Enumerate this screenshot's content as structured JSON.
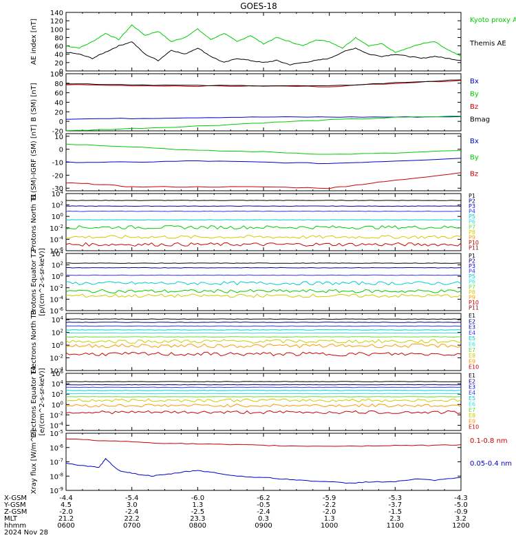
{
  "title": "GOES-18",
  "x_ticks": [
    "0600",
    "0700",
    "0800",
    "0900",
    "1000",
    "1100",
    "1200"
  ],
  "footer": {
    "row_labels": [
      "X-GSM",
      "Y-GSM",
      "Z-GSM",
      "MLT",
      "hhmm",
      "2024 Nov 28"
    ],
    "xgsm": [
      "-4.4",
      "-5.4",
      "-6.0",
      "-6.2",
      "-5.9",
      "-5.3",
      "-4.3"
    ],
    "ygsm": [
      "4.5",
      "3.0",
      "1.3",
      "-0.5",
      "-2.2",
      "-3.7",
      "-5.0"
    ],
    "zgsm": [
      "-2.0",
      "-2.4",
      "-2.5",
      "-2.4",
      "-2.0",
      "-1.5",
      "-0.9"
    ],
    "mlt": [
      "21.2",
      "22.2",
      "23.3",
      "0.3",
      "1.3",
      "2.3",
      "3.2"
    ],
    "hhmm": [
      "0600",
      "0700",
      "0800",
      "0900",
      "1000",
      "1100",
      "1200"
    ]
  },
  "colors": {
    "black": "#000000",
    "blue": "#0000cc",
    "green": "#00cc00",
    "red": "#cc0000",
    "navy": "#000080",
    "royal": "#3333ff",
    "cyan": "#00cccc",
    "aqua": "#33dddd",
    "lime": "#66dd33",
    "yellow": "#cccc00",
    "orange": "#ff9900",
    "darkred": "#990000"
  },
  "chart_data": [
    {
      "type": "line",
      "panel": "ae",
      "ylabel": "AE index [nT]",
      "yticks": [
        "0",
        "20",
        "40",
        "60",
        "80",
        "100",
        "120",
        "140"
      ],
      "ylim": [
        0,
        140
      ],
      "series": [
        {
          "name": "Kyoto proxy AE",
          "color": "#00cc00",
          "x": [
            6.0,
            6.2,
            6.4,
            6.6,
            6.8,
            7.0,
            7.2,
            7.4,
            7.6,
            7.8,
            8.0,
            8.2,
            8.4,
            8.6,
            8.8,
            9.0,
            9.2,
            9.4,
            9.6,
            9.8,
            10.0,
            10.2,
            10.4,
            10.6,
            10.8,
            11.0,
            11.2,
            11.4,
            11.6,
            11.8,
            12.0
          ],
          "y": [
            60,
            55,
            70,
            90,
            75,
            110,
            85,
            95,
            70,
            80,
            100,
            75,
            90,
            70,
            85,
            65,
            80,
            70,
            60,
            75,
            70,
            55,
            80,
            60,
            65,
            45,
            55,
            65,
            70,
            50,
            35
          ]
        },
        {
          "name": "Themis AE",
          "color": "#000000",
          "x": [
            6.0,
            6.2,
            6.4,
            6.6,
            6.8,
            7.0,
            7.2,
            7.4,
            7.6,
            7.8,
            8.0,
            8.2,
            8.4,
            8.6,
            8.8,
            9.0,
            9.2,
            9.4,
            9.6,
            9.8,
            10.0,
            10.2,
            10.4,
            10.6,
            10.8,
            11.0,
            11.2,
            11.4,
            11.6,
            11.8,
            12.0
          ],
          "y": [
            45,
            40,
            30,
            45,
            60,
            70,
            40,
            25,
            50,
            40,
            55,
            35,
            20,
            30,
            25,
            20,
            25,
            15,
            20,
            25,
            30,
            45,
            55,
            40,
            35,
            40,
            35,
            30,
            35,
            30,
            25
          ]
        }
      ]
    },
    {
      "type": "line",
      "panel": "bsm",
      "ylabel": "B (SM) [nT]",
      "yticks": [
        "-20",
        "0",
        "20",
        "40",
        "60",
        "80",
        "100"
      ],
      "ylim": [
        -20,
        100
      ],
      "series": [
        {
          "name": "Bx",
          "color": "#0000cc",
          "x": [
            6,
            7,
            8,
            9,
            10,
            11,
            12
          ],
          "y": [
            5,
            6,
            8,
            9,
            9,
            9,
            10
          ]
        },
        {
          "name": "By",
          "color": "#00cc00",
          "x": [
            6,
            7,
            8,
            9,
            10,
            11,
            12
          ],
          "y": [
            -20,
            -15,
            -10,
            -3,
            3,
            8,
            11
          ]
        },
        {
          "name": "Bz",
          "color": "#cc0000",
          "x": [
            6,
            7,
            8,
            9,
            10,
            11,
            12
          ],
          "y": [
            77,
            75,
            74,
            74,
            73,
            80,
            86
          ]
        },
        {
          "name": "Bmag",
          "color": "#000000",
          "x": [
            6,
            7,
            8,
            9,
            10,
            11,
            12
          ],
          "y": [
            79,
            77,
            75,
            75,
            74,
            81,
            87
          ]
        }
      ]
    },
    {
      "type": "line",
      "panel": "bigrf",
      "ylabel": "B (SM)-IGRF (SM) [nT]",
      "yticks": [
        "-30",
        "-20",
        "-10",
        "0",
        "10"
      ],
      "ylim": [
        -32,
        12
      ],
      "series": [
        {
          "name": "Bx",
          "color": "#0000cc",
          "x": [
            6,
            7,
            8,
            9,
            10,
            11,
            12
          ],
          "y": [
            -10,
            -10,
            -9,
            -10,
            -11,
            -9,
            -7
          ]
        },
        {
          "name": "By",
          "color": "#00cc00",
          "x": [
            6,
            7,
            8,
            9,
            10,
            11,
            12
          ],
          "y": [
            4,
            2,
            -1,
            -2,
            -4,
            -3,
            -1
          ]
        },
        {
          "name": "Bz",
          "color": "#cc0000",
          "x": [
            6,
            6.5,
            7,
            8,
            9,
            10,
            10.5,
            11,
            12
          ],
          "y": [
            -26,
            -27,
            -29,
            -29,
            -29,
            -30,
            -27,
            -24,
            -18
          ]
        }
      ]
    },
    {
      "type": "line",
      "panel": "protons-north",
      "scale": "log",
      "ylabel": "Protons North T1",
      "yticks": [
        "10^4",
        "10^2",
        "10^0",
        "10^-2",
        "10^-4",
        "10^-6"
      ],
      "ylim": [
        -6,
        4
      ],
      "series": [
        {
          "name": "P1",
          "color": "#000000",
          "log_level": 2.8
        },
        {
          "name": "P2",
          "color": "#000080",
          "log_level": 1.8
        },
        {
          "name": "P3",
          "color": "#3333ff",
          "log_level": 0.9
        },
        {
          "name": "P4",
          "color": "#00cccc",
          "log_level": -0.6
        },
        {
          "name": "P5",
          "color": "#00cc00",
          "log_level": -1.9
        },
        {
          "name": "P6",
          "color": "#cccc00",
          "log_level": -3.6
        },
        {
          "name": "P7",
          "color": "#cc0000",
          "log_level": -4.9
        }
      ],
      "channel_labels": [
        "P1",
        "P2",
        "P3",
        "P4",
        "P5",
        "P6",
        "P7",
        "P8",
        "P9",
        "P10",
        "P11"
      ]
    },
    {
      "type": "line",
      "panel": "protons-equator",
      "scale": "log",
      "ylabel": "Protons Equator T2 [p/(cm^2-s-sr-keV)]",
      "yticks": [
        "10^4",
        "10^2",
        "10^0",
        "10^-2",
        "10^-4",
        "10^-6"
      ],
      "ylim": [
        -6,
        4
      ],
      "series": [
        {
          "name": "P1",
          "color": "#000000",
          "log_level": 2.3
        },
        {
          "name": "P2",
          "color": "#000080",
          "log_level": 1.5
        },
        {
          "name": "P3",
          "color": "#3333ff",
          "log_level": 0.2
        },
        {
          "name": "P4",
          "color": "#00cccc",
          "log_level": -1.2
        },
        {
          "name": "P5",
          "color": "#00cc00",
          "log_level": -2.6
        },
        {
          "name": "P6",
          "color": "#cccc00",
          "log_level": -3.4
        }
      ],
      "channel_labels": [
        "P1",
        "P2",
        "P3",
        "P4",
        "P5",
        "P6",
        "P7",
        "P8",
        "P9",
        "P10",
        "P11"
      ]
    },
    {
      "type": "line",
      "panel": "electrons-north",
      "scale": "log",
      "ylabel": "Electrons North T3",
      "yticks": [
        "10^4",
        "10^2",
        "10^0",
        "10^-2",
        "10^-4"
      ],
      "ylim": [
        -4,
        5
      ],
      "series": [
        {
          "name": "E1",
          "color": "#000000",
          "log_level": 4.1
        },
        {
          "name": "E2",
          "color": "#000080",
          "log_level": 3.6
        },
        {
          "name": "E3",
          "color": "#3333ff",
          "log_level": 3.0
        },
        {
          "name": "E4",
          "color": "#00cccc",
          "log_level": 2.4
        },
        {
          "name": "E5",
          "color": "#33dddd",
          "log_level": 1.9
        },
        {
          "name": "E6",
          "color": "#66dd33",
          "log_level": 1.3
        },
        {
          "name": "E7",
          "color": "#cccc00",
          "log_level": 0.6
        },
        {
          "name": "E8",
          "color": "#ff9900",
          "log_level": -0.1
        },
        {
          "name": "E9",
          "color": "#cc0000",
          "log_level": -1.4
        }
      ],
      "channel_labels": [
        "E1",
        "E2",
        "E3",
        "E4",
        "E5",
        "E6",
        "E7",
        "E8",
        "E9",
        "E10"
      ]
    },
    {
      "type": "line",
      "panel": "electrons-equator",
      "scale": "log",
      "ylabel": "Electrons Equator T4 [e/(cm^2-s-sr-keV)]",
      "yticks": [
        "10^6",
        "10^4",
        "10^2",
        "10^0",
        "10^-2",
        "10^-4"
      ],
      "ylim": [
        -5,
        6
      ],
      "series": [
        {
          "name": "E1",
          "color": "#000000",
          "log_level": 4.4
        },
        {
          "name": "E2",
          "color": "#000080",
          "log_level": 3.8
        },
        {
          "name": "E3",
          "color": "#3333ff",
          "log_level": 3.3
        },
        {
          "name": "E4",
          "color": "#00cccc",
          "log_level": 2.7
        },
        {
          "name": "E5",
          "color": "#33dddd",
          "log_level": 2.1
        },
        {
          "name": "E6",
          "color": "#66dd33",
          "log_level": 1.5
        },
        {
          "name": "E7",
          "color": "#cccc00",
          "log_level": 0.8
        },
        {
          "name": "E8",
          "color": "#ff9900",
          "log_level": -0.2
        },
        {
          "name": "E9",
          "color": "#cc0000",
          "log_level": -1.5
        }
      ],
      "channel_labels": [
        "E1",
        "E2",
        "E3",
        "E4",
        "E5",
        "E6",
        "E7",
        "E8",
        "E9",
        "E10"
      ]
    },
    {
      "type": "line",
      "panel": "xray",
      "scale": "log",
      "ylabel": "Xray flux [W/m^2]",
      "yticks": [
        "10^-5",
        "10^-6",
        "10^-7",
        "10^-8",
        "10^-9"
      ],
      "ylim": [
        -9,
        -5
      ],
      "series": [
        {
          "name": "0.1-0.8 nm",
          "color": "#cc0000",
          "x": [
            6,
            6.5,
            7,
            7.5,
            8,
            8.5,
            9,
            9.5,
            10,
            10.5,
            11,
            11.5,
            12
          ],
          "y": [
            -5.4,
            -5.5,
            -5.6,
            -5.7,
            -5.75,
            -5.8,
            -5.85,
            -5.9,
            -5.9,
            -5.9,
            -5.85,
            -5.85,
            -5.8
          ]
        },
        {
          "name": "0.05-0.4 nm",
          "color": "#0000cc",
          "x": [
            6,
            6.3,
            6.5,
            6.6,
            6.8,
            7,
            7.3,
            7.5,
            7.8,
            8,
            8.3,
            8.6,
            9,
            9.3,
            9.6,
            10,
            10.3,
            10.6,
            11,
            11.3,
            11.6,
            12
          ],
          "y": [
            -7.1,
            -7.3,
            -7.4,
            -6.8,
            -7.6,
            -7.8,
            -8.0,
            -7.9,
            -7.7,
            -7.6,
            -7.8,
            -8.0,
            -8.1,
            -8.2,
            -8.3,
            -8.4,
            -8.5,
            -8.4,
            -8.4,
            -8.2,
            -8.3,
            -8.1
          ]
        }
      ]
    }
  ]
}
